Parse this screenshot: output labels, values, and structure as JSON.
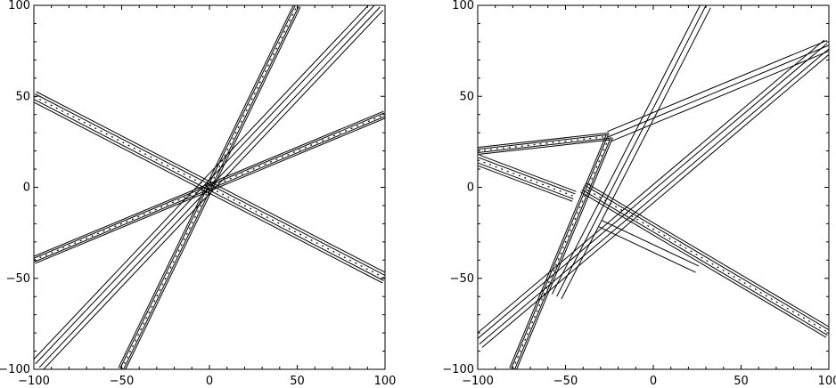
{
  "chart_data": [
    {
      "type": "contour",
      "xlim": [
        -100,
        100
      ],
      "ylim": [
        -100,
        100
      ],
      "xticks": [
        -100,
        -50,
        0,
        50,
        100
      ],
      "yticks": [
        -100,
        -50,
        0,
        50,
        100
      ],
      "xtick_labels": [
        "−100",
        "−50",
        "0",
        "50",
        "100"
      ],
      "ytick_labels": [
        "−100",
        "−50",
        "0",
        "50",
        "100"
      ],
      "grid": false,
      "lines": [
        {
          "p1": [
            -100,
            50
          ],
          "p2": [
            100,
            -50
          ],
          "offsets": [
            -3.0,
            -1.5,
            1.5,
            3.0
          ],
          "dashed": true
        },
        {
          "p1": [
            -100,
            -40
          ],
          "p2": [
            100,
            40
          ],
          "offsets": [
            -2.0,
            -1.0,
            1.0,
            2.0
          ],
          "dashed": true
        },
        {
          "p1": [
            -50,
            -100
          ],
          "p2": [
            50,
            100
          ],
          "offsets": [
            -2.0,
            -1.0,
            1.0,
            2.0
          ],
          "dashed": true
        },
        {
          "p1": [
            -98,
            -98
          ],
          "p2": [
            96,
            100
          ],
          "offsets": [
            -4.0,
            -1.5,
            1.5,
            4.0
          ],
          "dashed": false
        }
      ]
    },
    {
      "type": "contour",
      "xlim": [
        -100,
        100
      ],
      "ylim": [
        -100,
        100
      ],
      "xticks": [
        -100,
        -50,
        0,
        50,
        100
      ],
      "yticks": [
        -100,
        -50,
        0,
        50,
        100
      ],
      "xtick_labels": [
        "−100",
        "−50",
        "0",
        "50",
        "100"
      ],
      "ytick_labels": [
        "−100",
        "−50",
        "0",
        "50",
        "100"
      ],
      "grid": false,
      "lines": [
        {
          "p1": [
            -100,
            20
          ],
          "p2": [
            -25,
            28
          ],
          "offsets": [
            -2.0,
            -1.0,
            1.0,
            2.0
          ],
          "dashed": true
        },
        {
          "p1": [
            -80,
            -100
          ],
          "p2": [
            -25,
            28
          ],
          "offsets": [
            -2.0,
            -1.0,
            1.0,
            2.0
          ],
          "dashed": true
        },
        {
          "p1": [
            -100,
            15
          ],
          "p2": [
            -45,
            -5
          ],
          "offsets": [
            -3.0,
            -1.5,
            1.5,
            3.0
          ],
          "dashed": true
        },
        {
          "p1": [
            -100,
            -85
          ],
          "p2": [
            100,
            78
          ],
          "offsets": [
            -4.0,
            -1.5,
            1.5,
            4.0
          ],
          "dashed": false
        },
        {
          "p1": [
            -25,
            28
          ],
          "p2": [
            100,
            78
          ],
          "offsets": [
            -3.0,
            0,
            3.0
          ],
          "dashed": false
        },
        {
          "p1": [
            -40,
            0
          ],
          "p2": [
            100,
            -80
          ],
          "offsets": [
            -3.0,
            -1.5,
            1.5,
            3.0
          ],
          "dashed": true
        },
        {
          "p1": [
            -55,
            -60
          ],
          "p2": [
            30,
            100
          ],
          "offsets": [
            -3.0,
            0,
            3.0
          ],
          "dashed": false
        },
        {
          "p1": [
            -30,
            -20
          ],
          "p2": [
            25,
            -45
          ],
          "offsets": [
            -2.0,
            2.0
          ],
          "dashed": false
        }
      ]
    }
  ]
}
